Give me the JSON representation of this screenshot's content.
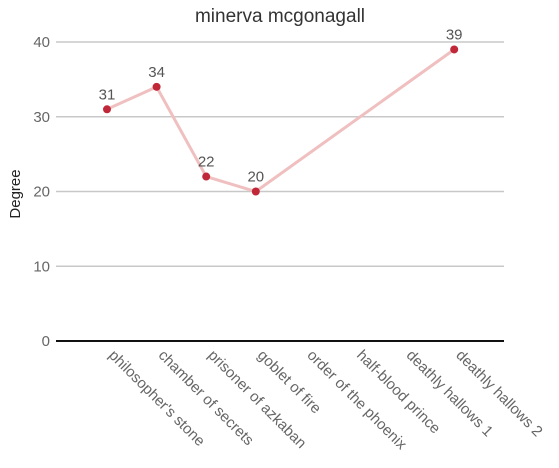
{
  "chart_data": {
    "type": "line",
    "title": "minerva mcgonagall",
    "xlabel": "",
    "ylabel": "Degree",
    "ylim": [
      0,
      40
    ],
    "yticks": [
      0,
      10,
      20,
      30,
      40
    ],
    "grid": true,
    "legend": "none",
    "categories": [
      "philosopher's stone",
      "chamber of secrets",
      "prisoner of azkaban",
      "goblet of fire",
      "order of the phoenix",
      "half-blood prince",
      "deathly hallows 1",
      "deathly hallows 2"
    ],
    "series": [
      {
        "values": [
          31,
          34,
          22,
          20,
          null,
          null,
          null,
          39
        ],
        "line_color": "#f0c0c0",
        "marker_color": "#c0283a"
      }
    ],
    "data_labels": [
      "31",
      "34",
      "22",
      "20",
      "",
      "",
      "",
      "39"
    ]
  }
}
